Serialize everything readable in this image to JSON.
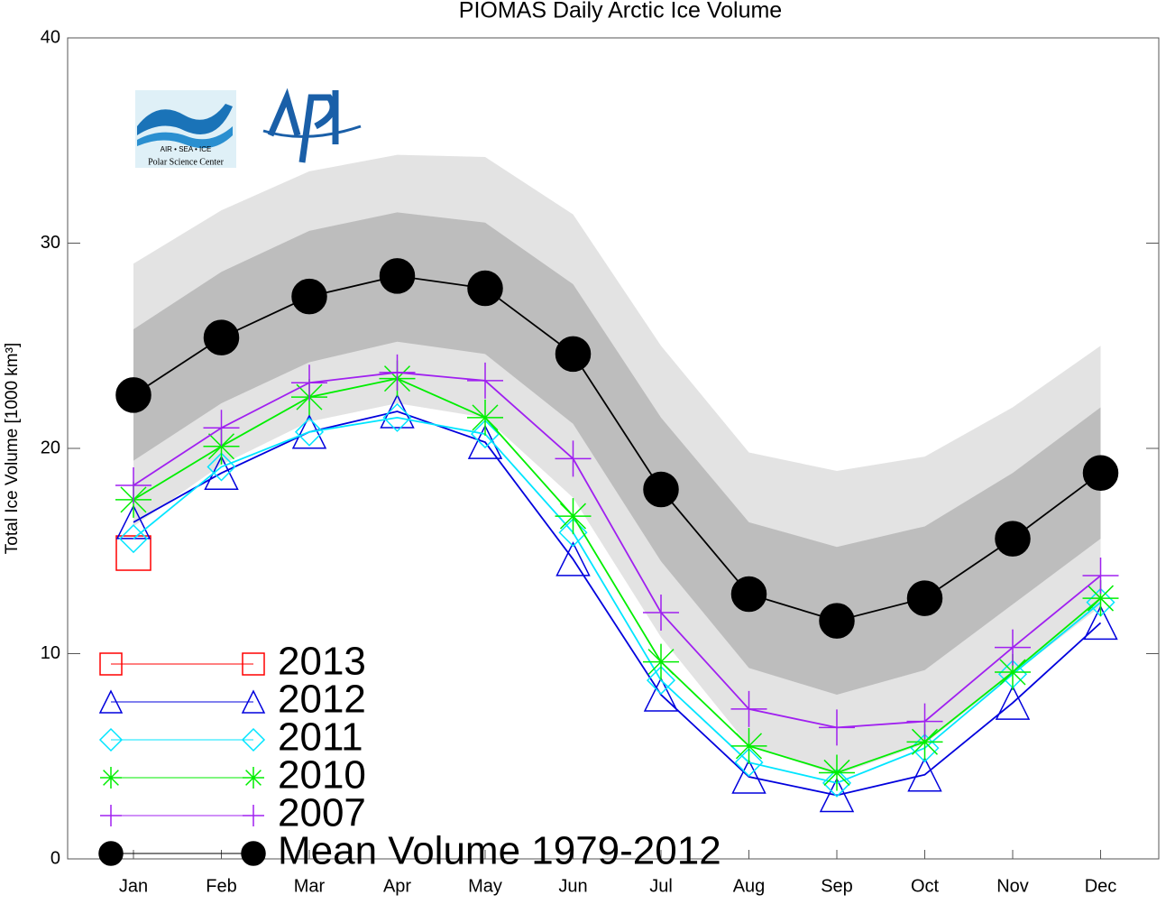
{
  "chart_data": {
    "type": "line",
    "title": "PIOMAS Daily Arctic Ice Volume",
    "y_label": "Total Ice Volume [1000 km³]",
    "annotations": [
      "AIR  •  SEA  •  ICE",
      "Polar Science Center"
    ],
    "categories": [
      "Jan",
      "Feb",
      "Mar",
      "Apr",
      "May",
      "Jun",
      "Jul",
      "Aug",
      "Sep",
      "Oct",
      "Nov",
      "Dec"
    ],
    "ylim": [
      0,
      40
    ],
    "yticks": [
      0,
      10,
      20,
      30,
      40
    ],
    "grid": false,
    "legend": "lower left",
    "bands": [
      {
        "color": "#e3e3e3",
        "upper": [
          29.0,
          31.6,
          33.5,
          34.3,
          34.2,
          31.4,
          25.0,
          19.8,
          18.9,
          19.6,
          22.0,
          25.0
        ],
        "lower": [
          16.2,
          19.2,
          21.3,
          22.2,
          21.5,
          17.6,
          10.8,
          5.5,
          4.1,
          5.6,
          9.0,
          12.3
        ]
      },
      {
        "color": "#bdbdbd",
        "upper": [
          25.8,
          28.6,
          30.6,
          31.5,
          31.0,
          28.0,
          21.5,
          16.4,
          15.2,
          16.2,
          18.8,
          22.0
        ],
        "lower": [
          19.4,
          22.2,
          24.2,
          25.2,
          24.6,
          21.2,
          14.5,
          9.3,
          8.0,
          9.2,
          12.4,
          15.6
        ]
      }
    ],
    "series": [
      {
        "name": "2013",
        "color": "#ff0000",
        "marker": "square",
        "values": [
          14.9,
          null,
          null,
          null,
          null,
          null,
          null,
          null,
          null,
          null,
          null,
          null
        ]
      },
      {
        "name": "2012",
        "color": "#0000dd",
        "marker": "triangle",
        "values": [
          16.4,
          18.8,
          20.8,
          21.8,
          20.3,
          14.6,
          8.0,
          4.0,
          3.1,
          4.1,
          7.6,
          11.5
        ]
      },
      {
        "name": "2011",
        "color": "#00e5ff",
        "marker": "diamond",
        "values": [
          15.6,
          19.1,
          20.8,
          21.5,
          20.7,
          15.9,
          8.7,
          4.7,
          3.7,
          5.4,
          9.0,
          12.5
        ]
      },
      {
        "name": "2010",
        "color": "#00ee00",
        "marker": "asterisk",
        "values": [
          17.5,
          20.1,
          22.5,
          23.4,
          21.5,
          16.7,
          9.6,
          5.5,
          4.2,
          5.7,
          9.1,
          12.7
        ]
      },
      {
        "name": "2007",
        "color": "#a020f0",
        "marker": "plus",
        "values": [
          18.2,
          21.0,
          23.2,
          23.7,
          23.3,
          19.5,
          12.0,
          7.3,
          6.4,
          6.7,
          10.3,
          13.8
        ]
      },
      {
        "name": "Mean Volume 1979-2012",
        "color": "#000000",
        "marker": "circle",
        "values": [
          22.6,
          25.4,
          27.4,
          28.4,
          27.8,
          24.6,
          18.0,
          12.9,
          11.6,
          12.7,
          15.6,
          18.8
        ]
      }
    ]
  }
}
